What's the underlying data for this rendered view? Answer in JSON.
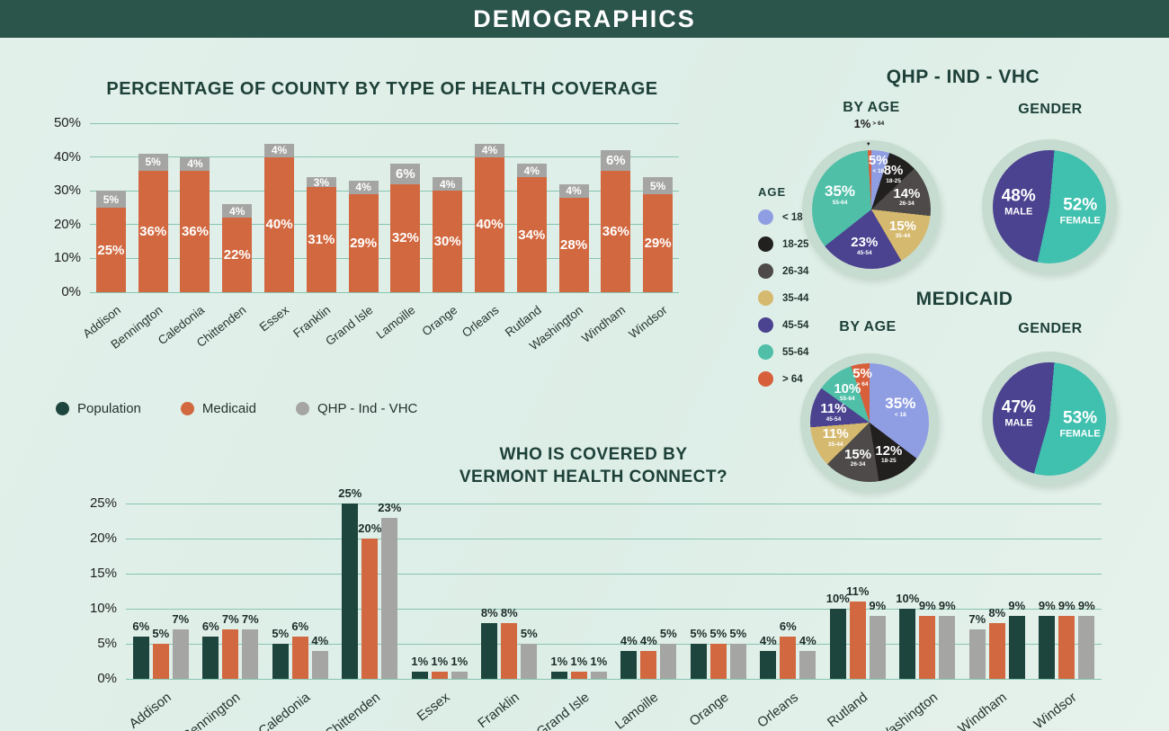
{
  "header": {
    "title": "DEMOGRAPHICS"
  },
  "colors": {
    "population": "#1d453d",
    "medicaid": "#d2683f",
    "qhp": "#a5a5a3",
    "age_lt18": "#8f9ee2",
    "age_18_25": "#221f1f",
    "age_26_34": "#4d4a49",
    "age_35_44": "#d5b96e",
    "age_45_54": "#4b4290",
    "age_55_64": "#4fbfa8",
    "age_gt64": "#d7603a",
    "male": "#4b4290",
    "female": "#40c0ae",
    "ring": "#c7dcd1",
    "grid": "#87c4b2",
    "title_text": "#1d4038"
  },
  "sections": {
    "qhp": {
      "title": "QHP - IND - VHC",
      "by_age": "BY AGE",
      "gender": "GENDER"
    },
    "medicaid": {
      "title": "MEDICAID",
      "by_age": "BY AGE",
      "gender": "GENDER"
    }
  },
  "coverage_legend": {
    "items": [
      {
        "label": "Population",
        "color": "population"
      },
      {
        "label": "Medicaid",
        "color": "medicaid"
      },
      {
        "label": "QHP - Ind - VHC",
        "color": "qhp"
      }
    ]
  },
  "age_legend": {
    "title": "AGE",
    "items": [
      {
        "label": "< 18",
        "color": "age_lt18"
      },
      {
        "label": "18-25",
        "color": "age_18_25"
      },
      {
        "label": "26-34",
        "color": "age_26_34"
      },
      {
        "label": "35-44",
        "color": "age_35_44"
      },
      {
        "label": "45-54",
        "color": "age_45_54"
      },
      {
        "label": "55-64",
        "color": "age_55_64"
      },
      {
        "label": "> 64",
        "color": "age_gt64"
      }
    ]
  },
  "chart_data": [
    {
      "id": "county-coverage",
      "type": "bar",
      "stacked": true,
      "title": "PERCENTAGE OF COUNTY BY TYPE OF HEALTH COVERAGE",
      "categories": [
        "Addison",
        "Bennington",
        "Caledonia",
        "Chittenden",
        "Essex",
        "Franklin",
        "Grand Isle",
        "Lamoille",
        "Orange",
        "Orleans",
        "Rutland",
        "Washington",
        "Windham",
        "Windsor"
      ],
      "series": [
        {
          "name": "Medicaid",
          "color": "medicaid",
          "values": [
            25,
            36,
            36,
            22,
            40,
            31,
            29,
            32,
            30,
            40,
            34,
            28,
            36,
            29
          ]
        },
        {
          "name": "QHP - Ind - VHC",
          "color": "qhp",
          "values": [
            5,
            5,
            4,
            4,
            4,
            3,
            4,
            6,
            4,
            4,
            4,
            4,
            6,
            5
          ]
        }
      ],
      "ylim": [
        0,
        50
      ],
      "yticks": [
        "0%",
        "10%",
        "20%",
        "30%",
        "40%",
        "50%"
      ],
      "grid": true,
      "legend_position": "below-left"
    },
    {
      "id": "qhp-age",
      "type": "pie",
      "title": "BY AGE",
      "label_style": "age",
      "start_deg": 0,
      "radius": 66,
      "slices": [
        {
          "pct": "5%",
          "range": "< 18",
          "value": 5,
          "color": "age_lt18"
        },
        {
          "pct": "8%",
          "range": "18-25",
          "value": 8,
          "color": "age_18_25"
        },
        {
          "pct": "14%",
          "range": "26-34",
          "value": 14,
          "color": "age_26_34"
        },
        {
          "pct": "15%",
          "range": "35-44",
          "value": 15,
          "color": "age_35_44"
        },
        {
          "pct": "23%",
          "range": "45-54",
          "value": 23,
          "color": "age_45_54"
        },
        {
          "pct": "35%",
          "range": "55-64",
          "value": 35,
          "color": "age_55_64"
        },
        {
          "pct": "1%",
          "range": "> 64",
          "value": 1,
          "color": "age_gt64",
          "external": true
        }
      ]
    },
    {
      "id": "qhp-gender",
      "type": "pie",
      "title": "GENDER",
      "label_style": "gender",
      "start_deg": 5,
      "radius": 63,
      "slices": [
        {
          "pct": "52%",
          "range": "FEMALE",
          "value": 52,
          "color": "female"
        },
        {
          "pct": "48%",
          "range": "MALE",
          "value": 48,
          "color": "male"
        }
      ]
    },
    {
      "id": "medicaid-age",
      "type": "pie",
      "title": "BY AGE",
      "label_style": "age",
      "start_deg": 0,
      "radius": 66,
      "slices": [
        {
          "pct": "35%",
          "range": "< 18",
          "value": 35,
          "color": "age_lt18"
        },
        {
          "pct": "12%",
          "range": "18-25",
          "value": 12,
          "color": "age_18_25"
        },
        {
          "pct": "15%",
          "range": "26-34",
          "value": 15,
          "color": "age_26_34"
        },
        {
          "pct": "11%",
          "range": "35-44",
          "value": 11,
          "color": "age_35_44"
        },
        {
          "pct": "11%",
          "range": "45-54",
          "value": 11,
          "color": "age_45_54"
        },
        {
          "pct": "10%",
          "range": "55-64",
          "value": 10,
          "color": "age_55_64"
        },
        {
          "pct": "5%",
          "range": "> 64",
          "value": 5,
          "color": "age_gt64"
        }
      ]
    },
    {
      "id": "medicaid-gender",
      "type": "pie",
      "title": "GENDER",
      "label_style": "gender",
      "start_deg": 5,
      "radius": 63,
      "slices": [
        {
          "pct": "53%",
          "range": "FEMALE",
          "value": 53,
          "color": "female"
        },
        {
          "pct": "47%",
          "range": "MALE",
          "value": 47,
          "color": "male"
        }
      ]
    },
    {
      "id": "vhc-coverage",
      "type": "bar",
      "stacked": false,
      "title": "WHO IS COVERED BY\nVERMONT HEALTH CONNECT?",
      "categories": [
        "Addison",
        "Bennington",
        "Caledonia",
        "Chittenden",
        "Essex",
        "Franklin",
        "Grand Isle",
        "Lamoille",
        "Orange",
        "Orleans",
        "Rutland",
        "Washington",
        "Windham",
        "Windsor"
      ],
      "series": [
        {
          "name": "Population",
          "color": "population",
          "values": [
            6,
            6,
            5,
            25,
            1,
            8,
            1,
            4,
            5,
            4,
            10,
            10,
            9,
            9
          ]
        },
        {
          "name": "Medicaid",
          "color": "medicaid",
          "values": [
            5,
            7,
            6,
            20,
            1,
            8,
            1,
            4,
            5,
            6,
            11,
            9,
            8,
            9
          ]
        },
        {
          "name": "QHP - Ind - VHC",
          "color": "qhp",
          "values": [
            7,
            7,
            4,
            23,
            1,
            5,
            1,
            5,
            5,
            4,
            9,
            9,
            7,
            9
          ]
        }
      ],
      "reversed_categories": [
        "Windham"
      ],
      "ylim": [
        0,
        25
      ],
      "yticks": [
        "0%",
        "5%",
        "10%",
        "15%",
        "20%",
        "25%"
      ],
      "grid": true
    }
  ]
}
